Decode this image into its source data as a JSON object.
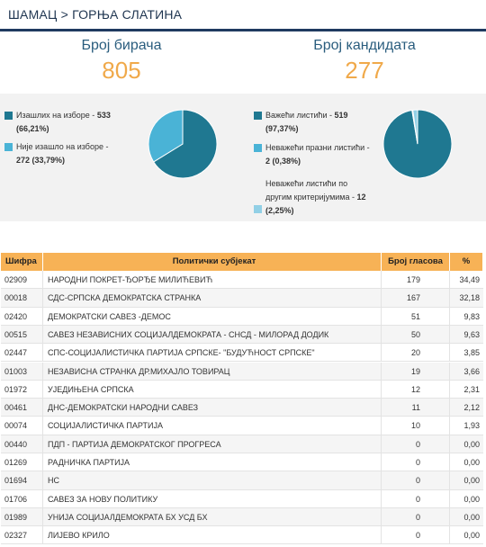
{
  "breadcrumb": "ШАМАЦ > ГОРЊА СЛАТИНА",
  "stats": {
    "voters_label": "Број бирача",
    "voters_value": "805",
    "candidates_label": "Број кандидата",
    "candidates_value": "277"
  },
  "turnout": {
    "items": [
      {
        "label": "Изашлих на изборе -",
        "value": "533",
        "pct": "(66,21%)",
        "color": "#1f7891",
        "share": 0.6621
      },
      {
        "label": "Није изашло на изборе -",
        "value": "272 (33,79%)",
        "pct": "",
        "color": "#4ab3d6",
        "share": 0.3379
      }
    ]
  },
  "ballots": {
    "items": [
      {
        "label": "Важећи листићи -",
        "value": "519",
        "pct": "(97,37%)",
        "color": "#1f7891",
        "share": 0.9737
      },
      {
        "label": "Неважећи празни листићи -",
        "value": "2",
        "pct": "(0,38%)",
        "color": "#4ab3d6",
        "share": 0.0038
      },
      {
        "label": "Неважећи листићи по другим критеријумима -",
        "value": "12",
        "pct": "(2,25%)",
        "color": "#92d0e6",
        "share": 0.0225
      }
    ]
  },
  "table": {
    "headers": [
      "Шифра",
      "Политички субјекат",
      "Број гласова",
      "%"
    ],
    "rows": [
      [
        "02909",
        "НАРОДНИ ПОКРЕТ-ЂОРЂЕ МИЛИЋЕВИЋ",
        "179",
        "34,49"
      ],
      [
        "00018",
        "СДС-СРПСКА ДЕМОКРАТСКА СТРАНКА",
        "167",
        "32,18"
      ],
      [
        "02420",
        "ДЕМОКРАТСКИ САВЕЗ -ДЕМОС",
        "51",
        "9,83"
      ],
      [
        "00515",
        "САВЕЗ НЕЗАВИСНИХ СОЦИЈАЛДЕМОКРАТА - СНСД - МИЛОРАД ДОДИК",
        "50",
        "9,63"
      ],
      [
        "02447",
        "СПС-СОЦИЈАЛИСТИЧКА ПАРТИЈА СРПСКЕ- \"БУДУЋНОСТ СРПСКЕ\"",
        "20",
        "3,85"
      ],
      [
        "01003",
        "НЕЗАВИСНА СТРАНКА ДР.МИХАЈЛО ТОВИРАЦ",
        "19",
        "3,66"
      ],
      [
        "01972",
        "УЈЕДИЊЕНА СРПСКА",
        "12",
        "2,31"
      ],
      [
        "00461",
        "ДНС-ДЕМОКРАТСКИ НАРОДНИ САВЕЗ",
        "11",
        "2,12"
      ],
      [
        "00074",
        "СОЦИЈАЛИСТИЧКА ПАРТИЈА",
        "10",
        "1,93"
      ],
      [
        "00440",
        "ПДП - ПАРТИЈА ДЕМОКРАТСКОГ ПРОГРЕСА",
        "0",
        "0,00"
      ],
      [
        "01269",
        "РАДНИЧКА ПАРТИЈА",
        "0",
        "0,00"
      ],
      [
        "01694",
        "НС",
        "0",
        "0,00"
      ],
      [
        "01706",
        "САВЕЗ ЗА НОВУ ПОЛИТИКУ",
        "0",
        "0,00"
      ],
      [
        "01989",
        "УНИЈА СОЦИЈАЛДЕМОКРАТА БХ УСД БХ",
        "0",
        "0,00"
      ],
      [
        "02327",
        "ЛИЈЕВО КРИЛО",
        "0",
        "0,00"
      ]
    ]
  }
}
